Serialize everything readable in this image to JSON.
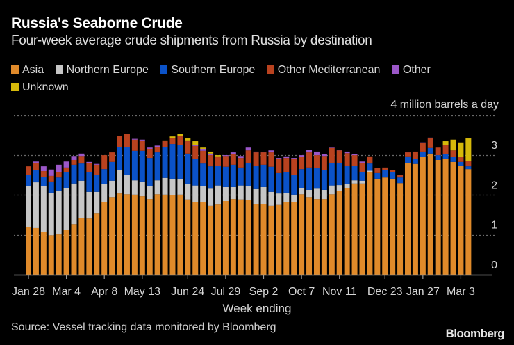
{
  "title": "Russia's Seaborne Crude",
  "subtitle": "Four-week average crude shipments from Russia by destination",
  "unit_label": "4 million barrels a day",
  "xlabel": "Week ending",
  "source": "Source: Vessel tracking data monitored by Bloomberg",
  "logo": "Bloomberg",
  "legend": [
    {
      "name": "Asia",
      "color": "#e08a2a"
    },
    {
      "name": "Northern Europe",
      "color": "#c6c6c6"
    },
    {
      "name": "Southern Europe",
      "color": "#0b52c8"
    },
    {
      "name": "Other Mediterranean",
      "color": "#b9421f"
    },
    {
      "name": "Other",
      "color": "#9b57c8"
    },
    {
      "name": "Unknown",
      "color": "#d6b90a"
    }
  ],
  "chart_data": {
    "type": "bar",
    "stacked": true,
    "title": "Russia's Seaborne Crude",
    "subtitle": "Four-week average crude shipments from Russia by destination",
    "xlabel": "Week ending",
    "ylabel": "4 million barrels a day",
    "ylim": [
      0,
      4
    ],
    "yticks": [
      0,
      1,
      2,
      3,
      4
    ],
    "ytick_labels": [
      "0",
      "1",
      "2",
      "3",
      ""
    ],
    "grid": true,
    "legend_position": "top",
    "x_tick_labels": [
      {
        "index": 0,
        "label": "Jan 28"
      },
      {
        "index": 5,
        "label": "Mar 4"
      },
      {
        "index": 10,
        "label": "Apr 8"
      },
      {
        "index": 15,
        "label": "May 13"
      },
      {
        "index": 21,
        "label": "Jun 24"
      },
      {
        "index": 26,
        "label": "Jul 29"
      },
      {
        "index": 31,
        "label": "Sep 2"
      },
      {
        "index": 36,
        "label": "Oct 7"
      },
      {
        "index": 41,
        "label": "Nov 11"
      },
      {
        "index": 47,
        "label": "Dec 23"
      },
      {
        "index": 52,
        "label": "Jan 27"
      },
      {
        "index": 57,
        "label": "Mar 3"
      }
    ],
    "num_weeks": 59,
    "series": [
      {
        "name": "Asia",
        "color": "#e08a2a",
        "values": [
          1.19,
          1.17,
          1.08,
          0.99,
          1.01,
          1.13,
          1.27,
          1.43,
          1.41,
          1.55,
          1.82,
          1.95,
          2.04,
          2.02,
          2.01,
          1.97,
          1.9,
          2.02,
          2.01,
          1.99,
          2.01,
          1.89,
          1.83,
          1.82,
          1.73,
          1.76,
          1.85,
          1.9,
          1.89,
          1.87,
          1.78,
          1.78,
          1.73,
          1.75,
          1.82,
          1.83,
          2.02,
          1.95,
          1.9,
          1.9,
          2.02,
          2.11,
          2.18,
          2.29,
          2.29,
          2.58,
          2.41,
          2.44,
          2.41,
          2.3,
          2.81,
          2.78,
          2.95,
          3.04,
          2.88,
          2.9,
          2.83,
          2.74,
          2.65
        ]
      },
      {
        "name": "Northern Europe",
        "color": "#c6c6c6",
        "values": [
          1.04,
          1.15,
          1.14,
          1.07,
          1.1,
          1.05,
          1.02,
          0.93,
          0.67,
          0.53,
          0.45,
          0.41,
          0.58,
          0.49,
          0.36,
          0.37,
          0.32,
          0.35,
          0.42,
          0.42,
          0.4,
          0.38,
          0.41,
          0.4,
          0.43,
          0.48,
          0.35,
          0.3,
          0.35,
          0.35,
          0.37,
          0.42,
          0.35,
          0.29,
          0.24,
          0.18,
          0.16,
          0.18,
          0.26,
          0.23,
          0.22,
          0.14,
          0.09,
          0.08,
          0.07,
          0.03,
          0,
          0,
          0,
          0,
          0,
          0,
          0,
          0,
          0,
          0,
          0,
          0,
          0
        ]
      },
      {
        "name": "Southern Europe",
        "color": "#0b52c8",
        "values": [
          0.28,
          0.31,
          0.24,
          0.28,
          0.33,
          0.4,
          0.47,
          0.43,
          0.49,
          0.43,
          0.38,
          0.47,
          0.59,
          0.7,
          0.74,
          0.77,
          0.71,
          0.7,
          0.78,
          0.87,
          0.84,
          0.77,
          0.67,
          0.57,
          0.56,
          0.5,
          0.51,
          0.56,
          0.45,
          0.59,
          0.59,
          0.56,
          0.63,
          0.51,
          0.52,
          0.5,
          0.47,
          0.56,
          0.51,
          0.49,
          0.57,
          0.56,
          0.47,
          0.37,
          0.21,
          0.18,
          0.14,
          0.19,
          0.16,
          0.14,
          0.16,
          0.12,
          0.14,
          0.14,
          0.12,
          0.12,
          0.12,
          0.09,
          0.07
        ]
      },
      {
        "name": "Other Mediterranean",
        "color": "#b9421f",
        "values": [
          0.21,
          0.18,
          0.14,
          0.14,
          0.13,
          0.11,
          0.12,
          0.19,
          0.24,
          0.25,
          0.35,
          0.24,
          0.28,
          0.33,
          0.28,
          0.26,
          0.23,
          0.14,
          0.14,
          0.14,
          0.24,
          0.31,
          0.32,
          0.32,
          0.28,
          0.21,
          0.27,
          0.26,
          0.24,
          0.31,
          0.33,
          0.31,
          0.36,
          0.35,
          0.35,
          0.4,
          0.3,
          0.38,
          0.33,
          0.36,
          0.37,
          0.31,
          0.31,
          0.26,
          0.24,
          0.18,
          0.13,
          0.06,
          0.06,
          0.07,
          0.1,
          0.19,
          0.21,
          0.24,
          0.19,
          0.23,
          0.17,
          0.12,
          0.14
        ]
      },
      {
        "name": "Other",
        "color": "#9b57c8",
        "values": [
          0,
          0.03,
          0.12,
          0.16,
          0.19,
          0.15,
          0.1,
          0.06,
          0.02,
          0.02,
          0,
          0,
          0,
          0,
          0.02,
          0.02,
          0.03,
          0.03,
          0,
          0,
          0,
          0.02,
          0.03,
          0.05,
          0.04,
          0.02,
          0.02,
          0.05,
          0.05,
          0.07,
          0.02,
          0.01,
          0.05,
          0.03,
          0.04,
          0.02,
          0.05,
          0.07,
          0.09,
          0.04,
          0.01,
          0.01,
          0.04,
          0.02,
          0.03,
          0,
          0,
          0,
          0,
          0,
          0.01,
          0,
          0.02,
          0.02,
          0,
          0,
          0,
          0,
          0
        ]
      },
      {
        "name": "Unknown",
        "color": "#d6b90a",
        "values": [
          0,
          0,
          0,
          0,
          0,
          0,
          0,
          0,
          0,
          0,
          0,
          0,
          0,
          0,
          0,
          0,
          0,
          0,
          0.02,
          0.05,
          0.05,
          0.05,
          0.09,
          0.03,
          0.05,
          0.03,
          0,
          0,
          0,
          0,
          0,
          0,
          0,
          0,
          0,
          0,
          0,
          0,
          0,
          0,
          0,
          0,
          0,
          0,
          0,
          0,
          0,
          0,
          0,
          0,
          0,
          0,
          0,
          0,
          0,
          0.1,
          0.27,
          0.37,
          0.56
        ]
      }
    ]
  }
}
